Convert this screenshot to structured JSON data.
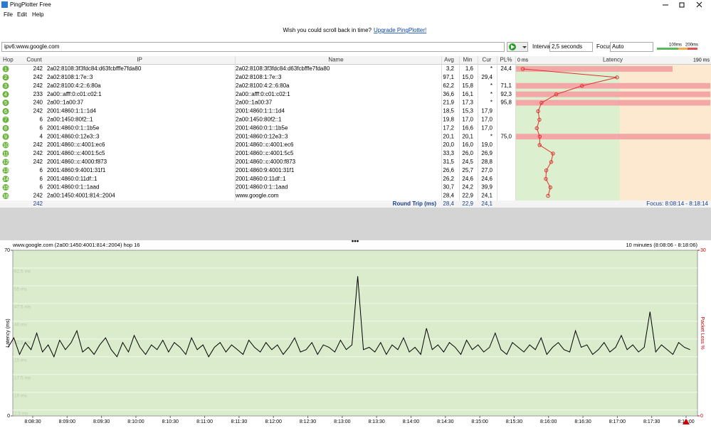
{
  "window": {
    "title": "PingPlotter Free"
  },
  "menu": [
    "File",
    "Edit",
    "Help"
  ],
  "banner": {
    "text": "Wish you could scroll back in time?",
    "link": "Upgrade PingPlotter!"
  },
  "toolbar": {
    "target": "ipv6:www.google.com",
    "interval_label": "Interval",
    "interval": "2,5 seconds",
    "focus_label": "Focus",
    "focus": "Auto",
    "scale_labels": [
      "100ms",
      "200ms"
    ]
  },
  "table": {
    "columns": [
      "Hop",
      "Count",
      "IP",
      "Name",
      "Avg",
      "Min",
      "Cur",
      "PL%",
      "Latency"
    ],
    "latency_scale": {
      "min": 0,
      "max": 190,
      "min_label": "0 ms",
      "max_label": "190 ms"
    },
    "rows": [
      {
        "hop": "1",
        "count": "242",
        "ip": "2a02:8108:3f3fdc84:d63fcbfffe7fda80",
        "name": "2a02:8108:3f3fdc84:d63fcbfffe7fda80",
        "avg": {
          "value": 3.2,
          "label": "3,2"
        },
        "min": "1,6",
        "cur": "*",
        "pl": {
          "value": 24.4,
          "label": "24,4"
        }
      },
      {
        "hop": "2",
        "count": "242",
        "ip": "2a02:8108:1:7e::3",
        "name": "2a02:8108:1:7e::3",
        "avg": {
          "value": 97.1,
          "label": "97,1"
        },
        "min": "15,0",
        "cur": "29,4"
      },
      {
        "hop": "3",
        "count": "242",
        "ip": "2a02:8100:4:2::6:80a",
        "name": "2a02:8100:4:2::6:80a",
        "avg": {
          "value": 62.2,
          "label": "62,2"
        },
        "min": "15,8",
        "cur": "*",
        "pl": {
          "value": 71.1,
          "label": "71,1"
        }
      },
      {
        "hop": "4",
        "count": "233",
        "ip": "2a00::afff:0:c01:c02:1",
        "name": "2a00::afff:0:c01:c02:1",
        "avg": {
          "value": 36.6,
          "label": "36,6"
        },
        "min": "16,1",
        "cur": "*",
        "pl": {
          "value": 92.3,
          "label": "92,3"
        }
      },
      {
        "hop": "5",
        "count": "240",
        "ip": "2a00::1a00:37",
        "name": "2a00::1a00:37",
        "avg": {
          "value": 21.9,
          "label": "21,9"
        },
        "min": "17,3",
        "cur": "*",
        "pl": {
          "value": 95.8,
          "label": "95,8"
        }
      },
      {
        "hop": "6",
        "count": "242",
        "ip": "2001:4860:1:1::1d4",
        "name": "2001:4860:1:1::1d4",
        "avg": {
          "value": 18.5,
          "label": "18,5"
        },
        "min": "15,3",
        "cur": "17,9"
      },
      {
        "hop": "7",
        "count": "6",
        "ip": "2a00:1450:80f2::1",
        "name": "2a00:1450:80f2::1",
        "avg": {
          "value": 19.8,
          "label": "19,8"
        },
        "min": "17,0",
        "cur": "17,0"
      },
      {
        "hop": "8",
        "count": "6",
        "ip": "2001:4860:0:1::1b5e",
        "name": "2001:4860:0:1::1b5e",
        "avg": {
          "value": 17.2,
          "label": "17,2"
        },
        "min": "16,6",
        "cur": "17,0"
      },
      {
        "hop": "9",
        "count": "4",
        "ip": "2001:4860:0:12e3::3",
        "name": "2001:4860:0:12e3::3",
        "avg": {
          "value": 20.1,
          "label": "20,1"
        },
        "min": "20,1",
        "cur": "*",
        "pl": {
          "value": 75.0,
          "label": "75,0"
        }
      },
      {
        "hop": "10",
        "count": "242",
        "ip": "2001:4860::c:4001:ec6",
        "name": "2001:4860::c:4001:ec6",
        "avg": {
          "value": 20.0,
          "label": "20,0"
        },
        "min": "16,0",
        "cur": "19,0"
      },
      {
        "hop": "11",
        "count": "242",
        "ip": "2001:4860::c:4001:5c5",
        "name": "2001:4860::c:4001:5c5",
        "avg": {
          "value": 33.3,
          "label": "33,3"
        },
        "min": "26,0",
        "cur": "26,9"
      },
      {
        "hop": "12",
        "count": "242",
        "ip": "2001:4860::c:4000:f873",
        "name": "2001:4860::c:4000:f873",
        "avg": {
          "value": 31.5,
          "label": "31,5"
        },
        "min": "24,5",
        "cur": "28,8"
      },
      {
        "hop": "13",
        "count": "6",
        "ip": "2001:4860:9:4001:31f1",
        "name": "2001:4860:9:4001:31f1",
        "avg": {
          "value": 26.6,
          "label": "26,6"
        },
        "min": "25,7",
        "cur": "27,0"
      },
      {
        "hop": "14",
        "count": "6",
        "ip": "2001:4860:0:11df::1",
        "name": "2001:4860:0:11df::1",
        "avg": {
          "value": 26.2,
          "label": "26,2"
        },
        "min": "24,6",
        "cur": "24,6"
      },
      {
        "hop": "15",
        "count": "6",
        "ip": "2001:4860:0:1::1aad",
        "name": "2001:4860:0:1::1aad",
        "avg": {
          "value": 30.7,
          "label": "30,7"
        },
        "min": "24,2",
        "cur": "39,9"
      },
      {
        "hop": "16",
        "count": "242",
        "ip": "2a00:1450:4001:814::2004",
        "name": "www.google.com",
        "avg": {
          "value": 28.4,
          "label": "28,4"
        },
        "min": "22,9",
        "cur": "24,1"
      }
    ],
    "footer": {
      "count": "242",
      "label": "Round Trip (ms)",
      "avg": "28,4",
      "min": "22,9",
      "cur": "24,1",
      "focus": "Focus: 8:08:14 - 8:18:14"
    }
  },
  "graph": {
    "title": "www.google.com (2a00:1450:4001:814::2004) hop 16",
    "range": "10 minutes (8:08:06 - 8:18:06)",
    "y_label": "Latency (ms)",
    "y2_label": "Packet Loss %",
    "ylim": [
      0,
      70
    ],
    "yticks": [
      0,
      70
    ],
    "y2lim": [
      0,
      30
    ],
    "y2ticks": [
      0,
      30
    ],
    "grid_ticks": [
      {
        "value": 62.5,
        "label": "62,5 ms"
      },
      {
        "value": 55,
        "label": "55 ms"
      },
      {
        "value": 47.5,
        "label": "47,5 ms"
      },
      {
        "value": 40,
        "label": "40 ms"
      },
      {
        "value": 32.5,
        "label": "32,5 ms"
      },
      {
        "value": 25,
        "label": "25 ms"
      },
      {
        "value": 17.5,
        "label": "17,5 ms"
      },
      {
        "value": 10,
        "label": "10 ms"
      },
      {
        "value": 2.5,
        "label": "2,5 ms"
      }
    ],
    "x_labels": [
      "8:08:30",
      "8:09:00",
      "8:09:30",
      "8:10:00",
      "8:10:30",
      "8:11:00",
      "8:11:30",
      "8:12:00",
      "8:12:30",
      "8:13:00",
      "8:13:30",
      "8:14:00",
      "8:14:30",
      "8:15:00",
      "8:15:30",
      "8:16:00",
      "8:16:30",
      "8:17:00",
      "8:17:30",
      "8:18:00"
    ],
    "values": [
      29,
      33,
      26,
      31,
      28,
      35,
      27,
      30,
      25,
      32,
      28,
      31,
      36,
      27,
      29,
      26,
      30,
      33,
      28,
      25,
      31,
      27,
      34,
      29,
      26,
      30,
      28,
      32,
      27,
      31,
      29,
      26,
      33,
      28,
      30,
      25,
      29,
      31,
      27,
      30,
      28,
      26,
      32,
      29,
      27,
      31,
      28,
      30,
      26,
      29,
      33,
      27,
      28,
      31,
      26,
      30,
      29,
      27,
      32,
      28,
      30,
      59,
      28,
      29,
      27,
      31,
      26,
      30,
      28,
      33,
      27,
      29,
      26,
      37,
      28,
      30,
      27,
      31,
      29,
      26,
      32,
      28,
      30,
      27,
      29,
      35,
      28,
      26,
      31,
      29,
      27,
      30,
      28,
      33,
      26,
      29,
      31,
      28,
      27,
      36,
      29,
      30,
      26,
      28,
      31,
      27,
      29,
      34,
      28,
      30,
      27,
      29,
      44,
      27,
      30,
      28,
      26,
      31,
      29,
      28
    ]
  }
}
